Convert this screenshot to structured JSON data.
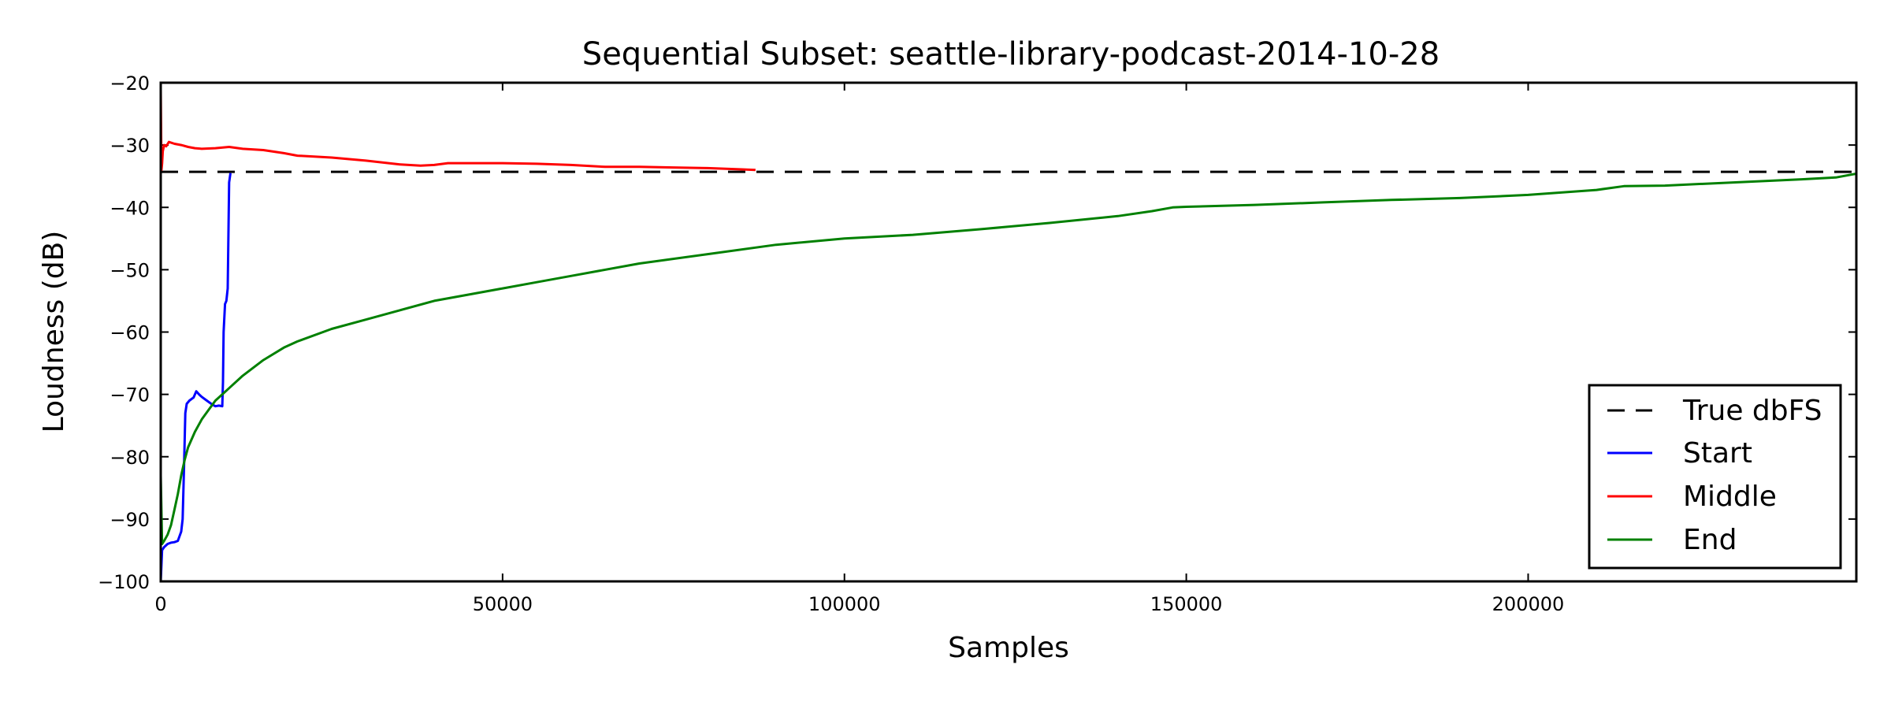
{
  "chart_data": {
    "type": "line",
    "title": "Sequential Subset: seattle-library-podcast-2014-10-28",
    "xlabel": "Samples",
    "ylabel": "Loudness (dB)",
    "xlim": [
      0,
      248000
    ],
    "ylim": [
      -100,
      -20
    ],
    "x_ticks": [
      0,
      50000,
      100000,
      150000,
      200000
    ],
    "y_ticks": [
      -100,
      -90,
      -80,
      -70,
      -60,
      -50,
      -40,
      -30,
      -20
    ],
    "legend_position": "lower-right",
    "grid": false,
    "reference_line": {
      "name": "True dbFS",
      "y": -34.3,
      "color": "#000000",
      "style": "dashed"
    },
    "series": [
      {
        "name": "Start",
        "color": "#0000ff",
        "x": [
          0,
          200,
          500,
          1000,
          1500,
          2000,
          2500,
          3000,
          3200,
          3400,
          3600,
          3800,
          4200,
          4800,
          5200,
          5600,
          6000,
          6500,
          7000,
          7500,
          8000,
          8500,
          9000,
          9100,
          9200,
          9400,
          9600,
          9800,
          10000,
          10200
        ],
        "y": [
          -100,
          -95,
          -94.5,
          -94,
          -93.8,
          -93.7,
          -93.5,
          -92,
          -90,
          -82,
          -73,
          -71.5,
          -71,
          -70.5,
          -69.5,
          -70,
          -70.4,
          -70.8,
          -71.2,
          -71.6,
          -71.9,
          -71.8,
          -71.9,
          -68,
          -60,
          -55.5,
          -55,
          -53,
          -36,
          -34.5
        ]
      },
      {
        "name": "Middle",
        "color": "#ff0000",
        "x": [
          0,
          100,
          200,
          300,
          500,
          800,
          1200,
          2000,
          3000,
          4000,
          5000,
          6000,
          8000,
          10000,
          12000,
          15000,
          18000,
          20000,
          25000,
          30000,
          35000,
          38000,
          40000,
          42000,
          45000,
          50000,
          55000,
          60000,
          65000,
          70000,
          75000,
          80000,
          85000,
          87000
        ],
        "y": [
          -21,
          -34,
          -33,
          -31,
          -30,
          -30.2,
          -29.5,
          -29.8,
          -30,
          -30.3,
          -30.5,
          -30.6,
          -30.5,
          -30.3,
          -30.6,
          -30.8,
          -31.3,
          -31.7,
          -32,
          -32.5,
          -33.1,
          -33.3,
          -33.2,
          -32.9,
          -32.9,
          -32.9,
          -33,
          -33.2,
          -33.5,
          -33.5,
          -33.6,
          -33.7,
          -33.9,
          -34
        ]
      },
      {
        "name": "End",
        "color": "#008000",
        "x": [
          0,
          200,
          500,
          1000,
          1500,
          2000,
          2500,
          3000,
          3500,
          4000,
          5000,
          6000,
          7000,
          8000,
          9000,
          10000,
          12000,
          15000,
          18000,
          20000,
          25000,
          30000,
          35000,
          40000,
          45000,
          50000,
          55000,
          60000,
          70000,
          80000,
          90000,
          100000,
          110000,
          120000,
          130000,
          140000,
          145000,
          148000,
          150000,
          160000,
          170000,
          180000,
          190000,
          200000,
          210000,
          214000,
          220000,
          230000,
          240000,
          245000,
          248000
        ],
        "y": [
          -83,
          -94,
          -93.5,
          -92.5,
          -91,
          -88.5,
          -86,
          -83,
          -80.5,
          -78.5,
          -76,
          -74,
          -72.5,
          -71,
          -70,
          -69,
          -67,
          -64.5,
          -62.5,
          -61.5,
          -59.5,
          -58,
          -56.5,
          -55,
          -54,
          -53,
          -52,
          -51,
          -49,
          -47.5,
          -46,
          -45,
          -44.4,
          -43.5,
          -42.5,
          -41.4,
          -40.6,
          -40,
          -39.9,
          -39.6,
          -39.2,
          -38.8,
          -38.5,
          -38,
          -37.2,
          -36.6,
          -36.5,
          -36,
          -35.5,
          -35.2,
          -34.6
        ]
      }
    ]
  }
}
